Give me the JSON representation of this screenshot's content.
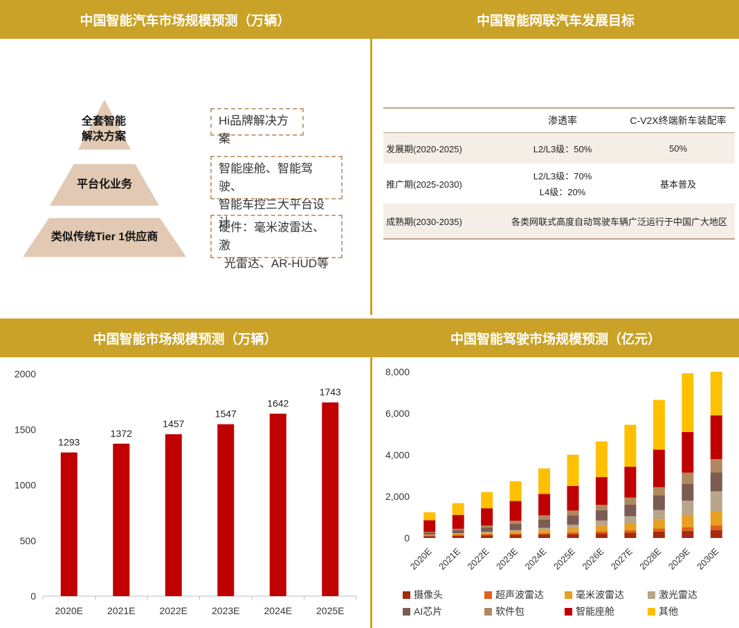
{
  "headers": {
    "top_left": "中国智能汽车市场规模预测（万辆）",
    "top_right": "中国智能网联汽车发展目标",
    "bottom_left": "中国智能市场规模预测（万辆）",
    "bottom_right": "中国智能驾驶市场规模预测（亿元）"
  },
  "pyramid": {
    "levels": [
      {
        "label_line1": "全套智能",
        "label_line2": "解决方案",
        "desc_line1": "Hi品牌解决方案",
        "desc_line2": ""
      },
      {
        "label_line1": "平台化业务",
        "label_line2": "",
        "desc_line1": "智能座舱、智能驾驶、",
        "desc_line2": "智能车控三大平台设计"
      },
      {
        "label_line1": "类似传统Tier 1供应商",
        "label_line2": "",
        "desc_line1": "硬件：毫米波雷达、激",
        "desc_line2": "光雷达、AR-HUD等"
      }
    ]
  },
  "goals_table": {
    "columns": [
      "",
      "渗透率",
      "C-V2X终端新车装配率"
    ],
    "rows": [
      {
        "period": "发展期(2020-2025)",
        "penetration_1": "L2/L3级：50%",
        "penetration_2": "",
        "cv2x": "50%"
      },
      {
        "period": "推广期(2025-2030)",
        "penetration_1": "L2/L3级：70%",
        "penetration_2": "L4级：20%",
        "cv2x": "基本普及"
      },
      {
        "period": "成熟期(2030-2035)",
        "merged": "各类网联式高度自动驾驶车辆广泛运行于中国广大地区"
      }
    ]
  },
  "chart_data": [
    {
      "type": "bar",
      "title": "中国智能市场规模预测（万辆）",
      "categories": [
        "2020E",
        "2021E",
        "2022E",
        "2023E",
        "2024E",
        "2025E"
      ],
      "values": [
        1293,
        1372,
        1457,
        1547,
        1642,
        1743
      ],
      "ylim": [
        0,
        2000
      ],
      "yticks": [
        0,
        500,
        1000,
        1500,
        2000
      ],
      "color": "#C00000",
      "data_labels": true
    },
    {
      "type": "bar",
      "stacked": true,
      "title": "中国智能驾驶市场规模预测（亿元）",
      "categories": [
        "2020E",
        "2021E",
        "2022E",
        "2023E",
        "2024E",
        "2025E",
        "2026E",
        "2027E",
        "2028E",
        "2029E",
        "2030E"
      ],
      "ylim": [
        0,
        8000
      ],
      "yticks": [
        0,
        2000,
        4000,
        6000,
        8000
      ],
      "ytick_labels": [
        "0",
        "2,000",
        "4,000",
        "6,000",
        "8,000"
      ],
      "legend_position": "bottom",
      "series": [
        {
          "name": "摄像头",
          "color": "#A52A0F",
          "values": [
            90,
            110,
            130,
            150,
            170,
            190,
            220,
            250,
            300,
            340,
            380
          ]
        },
        {
          "name": "超声波雷达",
          "color": "#E0601A",
          "values": [
            30,
            40,
            50,
            60,
            70,
            80,
            100,
            120,
            150,
            180,
            220
          ]
        },
        {
          "name": "毫米波雷达",
          "color": "#E8A020",
          "values": [
            40,
            60,
            80,
            110,
            150,
            200,
            260,
            330,
            420,
            560,
            700
          ]
        },
        {
          "name": "激光雷达",
          "color": "#B8A58C",
          "values": [
            0,
            20,
            40,
            60,
            100,
            170,
            260,
            350,
            480,
            720,
            950
          ]
        },
        {
          "name": "AI芯片",
          "color": "#7B5B52",
          "values": [
            90,
            150,
            200,
            300,
            400,
            450,
            500,
            550,
            700,
            800,
            900
          ]
        },
        {
          "name": "软件包",
          "color": "#B08860",
          "values": [
            40,
            60,
            100,
            150,
            200,
            230,
            260,
            350,
            400,
            550,
            650
          ]
        },
        {
          "name": "智能座舱",
          "color": "#C00000",
          "values": [
            560,
            670,
            830,
            950,
            1030,
            1180,
            1330,
            1480,
            1800,
            1950,
            2100
          ]
        },
        {
          "name": "其他",
          "color": "#FFC000",
          "values": [
            390,
            570,
            780,
            950,
            1230,
            1510,
            1720,
            2020,
            2400,
            2830,
            2100
          ]
        }
      ]
    }
  ]
}
